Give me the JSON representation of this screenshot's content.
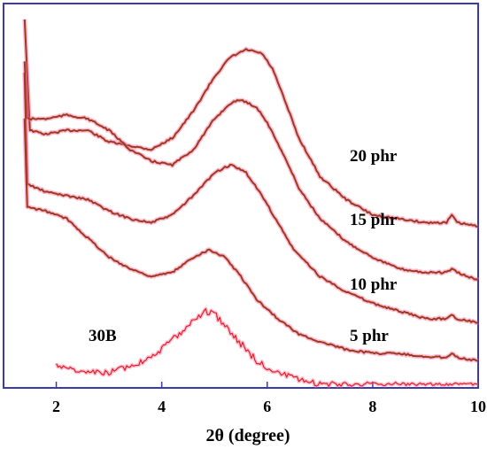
{
  "chart_data": {
    "type": "line",
    "title": "",
    "xlabel": "2θ (degree)",
    "ylabel": "",
    "xlim": [
      1,
      10
    ],
    "x_ticks": [
      "2",
      "4",
      "6",
      "8",
      "10"
    ],
    "colors": {
      "frame": "#3a3aa8",
      "curve": "#9b3a22",
      "halo": "#ff6a9a",
      "raw_30B": "#e01818"
    },
    "series": [
      {
        "name": "20 phr",
        "x": [
          1.4,
          1.5,
          1.8,
          2.2,
          2.6,
          3.0,
          3.4,
          3.8,
          4.2,
          4.6,
          5.0,
          5.3,
          5.6,
          5.9,
          6.1,
          6.3,
          6.6,
          7.0,
          7.5,
          8.0,
          8.5,
          9.0,
          9.4,
          9.5,
          9.6,
          10.0
        ],
        "y_norm": [
          0.96,
          0.67,
          0.66,
          0.67,
          0.67,
          0.64,
          0.63,
          0.62,
          0.65,
          0.72,
          0.81,
          0.86,
          0.88,
          0.87,
          0.83,
          0.76,
          0.65,
          0.55,
          0.49,
          0.45,
          0.44,
          0.43,
          0.43,
          0.45,
          0.43,
          0.42
        ]
      },
      {
        "name": "15 phr",
        "x": [
          1.4,
          1.45,
          1.8,
          2.2,
          2.6,
          3.0,
          3.4,
          3.8,
          4.2,
          4.6,
          5.0,
          5.3,
          5.5,
          5.8,
          6.0,
          6.3,
          6.6,
          7.0,
          7.5,
          8.0,
          8.5,
          9.0,
          9.4,
          9.5,
          9.6,
          10.0
        ],
        "y_norm": [
          0.85,
          0.7,
          0.7,
          0.71,
          0.7,
          0.67,
          0.62,
          0.59,
          0.58,
          0.62,
          0.7,
          0.74,
          0.75,
          0.73,
          0.69,
          0.61,
          0.52,
          0.44,
          0.38,
          0.34,
          0.31,
          0.3,
          0.3,
          0.31,
          0.3,
          0.28
        ]
      },
      {
        "name": "10 phr",
        "x": [
          1.4,
          1.45,
          1.8,
          2.2,
          2.6,
          3.0,
          3.4,
          3.8,
          4.2,
          4.6,
          5.0,
          5.3,
          5.6,
          5.9,
          6.2,
          6.5,
          7.0,
          7.5,
          8.0,
          8.5,
          9.0,
          9.4,
          9.5,
          9.6,
          10.0
        ],
        "y_norm": [
          0.82,
          0.53,
          0.51,
          0.5,
          0.49,
          0.46,
          0.44,
          0.43,
          0.45,
          0.5,
          0.56,
          0.58,
          0.56,
          0.5,
          0.43,
          0.36,
          0.29,
          0.25,
          0.22,
          0.2,
          0.18,
          0.18,
          0.19,
          0.18,
          0.17
        ]
      },
      {
        "name": "5 phr",
        "x": [
          1.4,
          1.45,
          1.8,
          2.2,
          2.6,
          3.0,
          3.4,
          3.8,
          4.2,
          4.6,
          4.9,
          5.2,
          5.5,
          5.8,
          6.2,
          6.6,
          7.0,
          7.5,
          8.0,
          8.5,
          9.0,
          9.4,
          9.5,
          9.6,
          10.0
        ],
        "y_norm": [
          0.7,
          0.47,
          0.46,
          0.44,
          0.39,
          0.34,
          0.31,
          0.29,
          0.3,
          0.34,
          0.36,
          0.34,
          0.29,
          0.23,
          0.18,
          0.14,
          0.12,
          0.1,
          0.09,
          0.09,
          0.08,
          0.08,
          0.09,
          0.08,
          0.07
        ]
      },
      {
        "name": "30B",
        "x": [
          2.0,
          2.5,
          3.0,
          3.5,
          4.0,
          4.4,
          4.7,
          4.9,
          5.1,
          5.4,
          5.8,
          6.2,
          6.6,
          7.0,
          7.5,
          8.0,
          8.5,
          9.0,
          9.5,
          10.0
        ],
        "y_norm": [
          0.06,
          0.04,
          0.04,
          0.06,
          0.1,
          0.15,
          0.19,
          0.2,
          0.18,
          0.13,
          0.07,
          0.04,
          0.02,
          0.01,
          0.01,
          0.01,
          0.01,
          0.01,
          0.01,
          0.01
        ]
      }
    ]
  }
}
